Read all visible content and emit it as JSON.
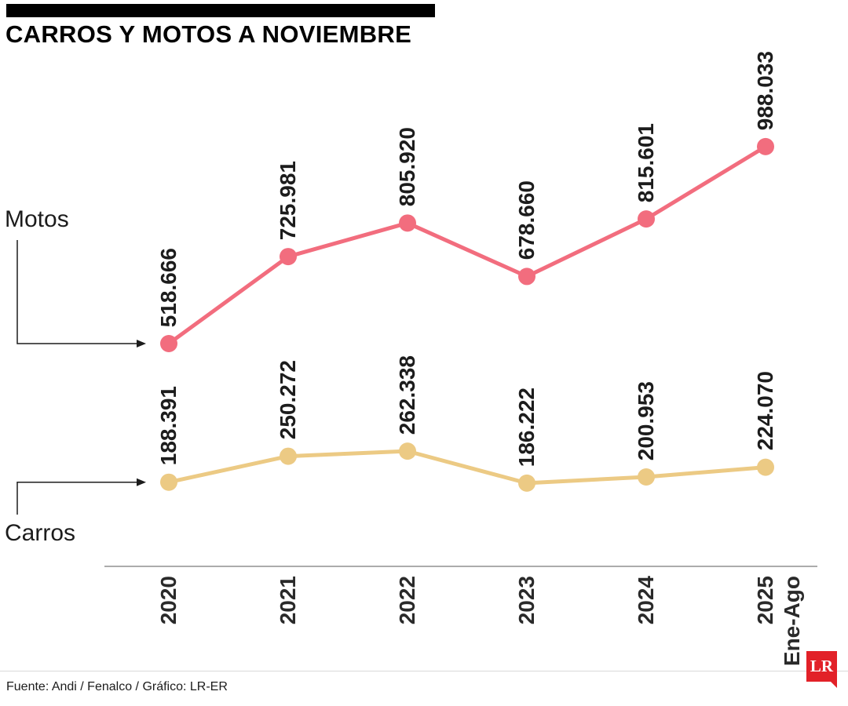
{
  "header": {
    "title": "CARROS Y MOTOS A NOVIEMBRE"
  },
  "footer": {
    "source": "Fuente: Andi / Fenalco / Gráfico: LR-ER",
    "logo_text": "LR",
    "logo_color": "#e22128"
  },
  "chart_data": {
    "type": "line",
    "title": "CARROS Y MOTOS A NOVIEMBRE",
    "categories": [
      "2020",
      "2021",
      "2022",
      "2023",
      "2024",
      "2025"
    ],
    "category_sublabels": [
      "",
      "",
      "",
      "",
      "",
      "Ene-Ago"
    ],
    "series": [
      {
        "name": "Motos",
        "color": "#f26d7e",
        "values": [
          518666,
          725981,
          805920,
          678660,
          815601,
          988033
        ],
        "labels": [
          "518.666",
          "725.981",
          "805.920",
          "678.660",
          "815.601",
          "988.033"
        ]
      },
      {
        "name": "Carros",
        "color": "#ecca84",
        "values": [
          188391,
          250272,
          262338,
          186222,
          200953,
          224070
        ],
        "labels": [
          "188.391",
          "250.272",
          "262.338",
          "186.222",
          "200.953",
          "224.070"
        ]
      }
    ],
    "ylim": [
      150000,
      1050000
    ],
    "grid": false,
    "legend_position": "left-annotations",
    "annotation_colors": {
      "line": "#1c1c1c",
      "axis": "#909090"
    }
  }
}
